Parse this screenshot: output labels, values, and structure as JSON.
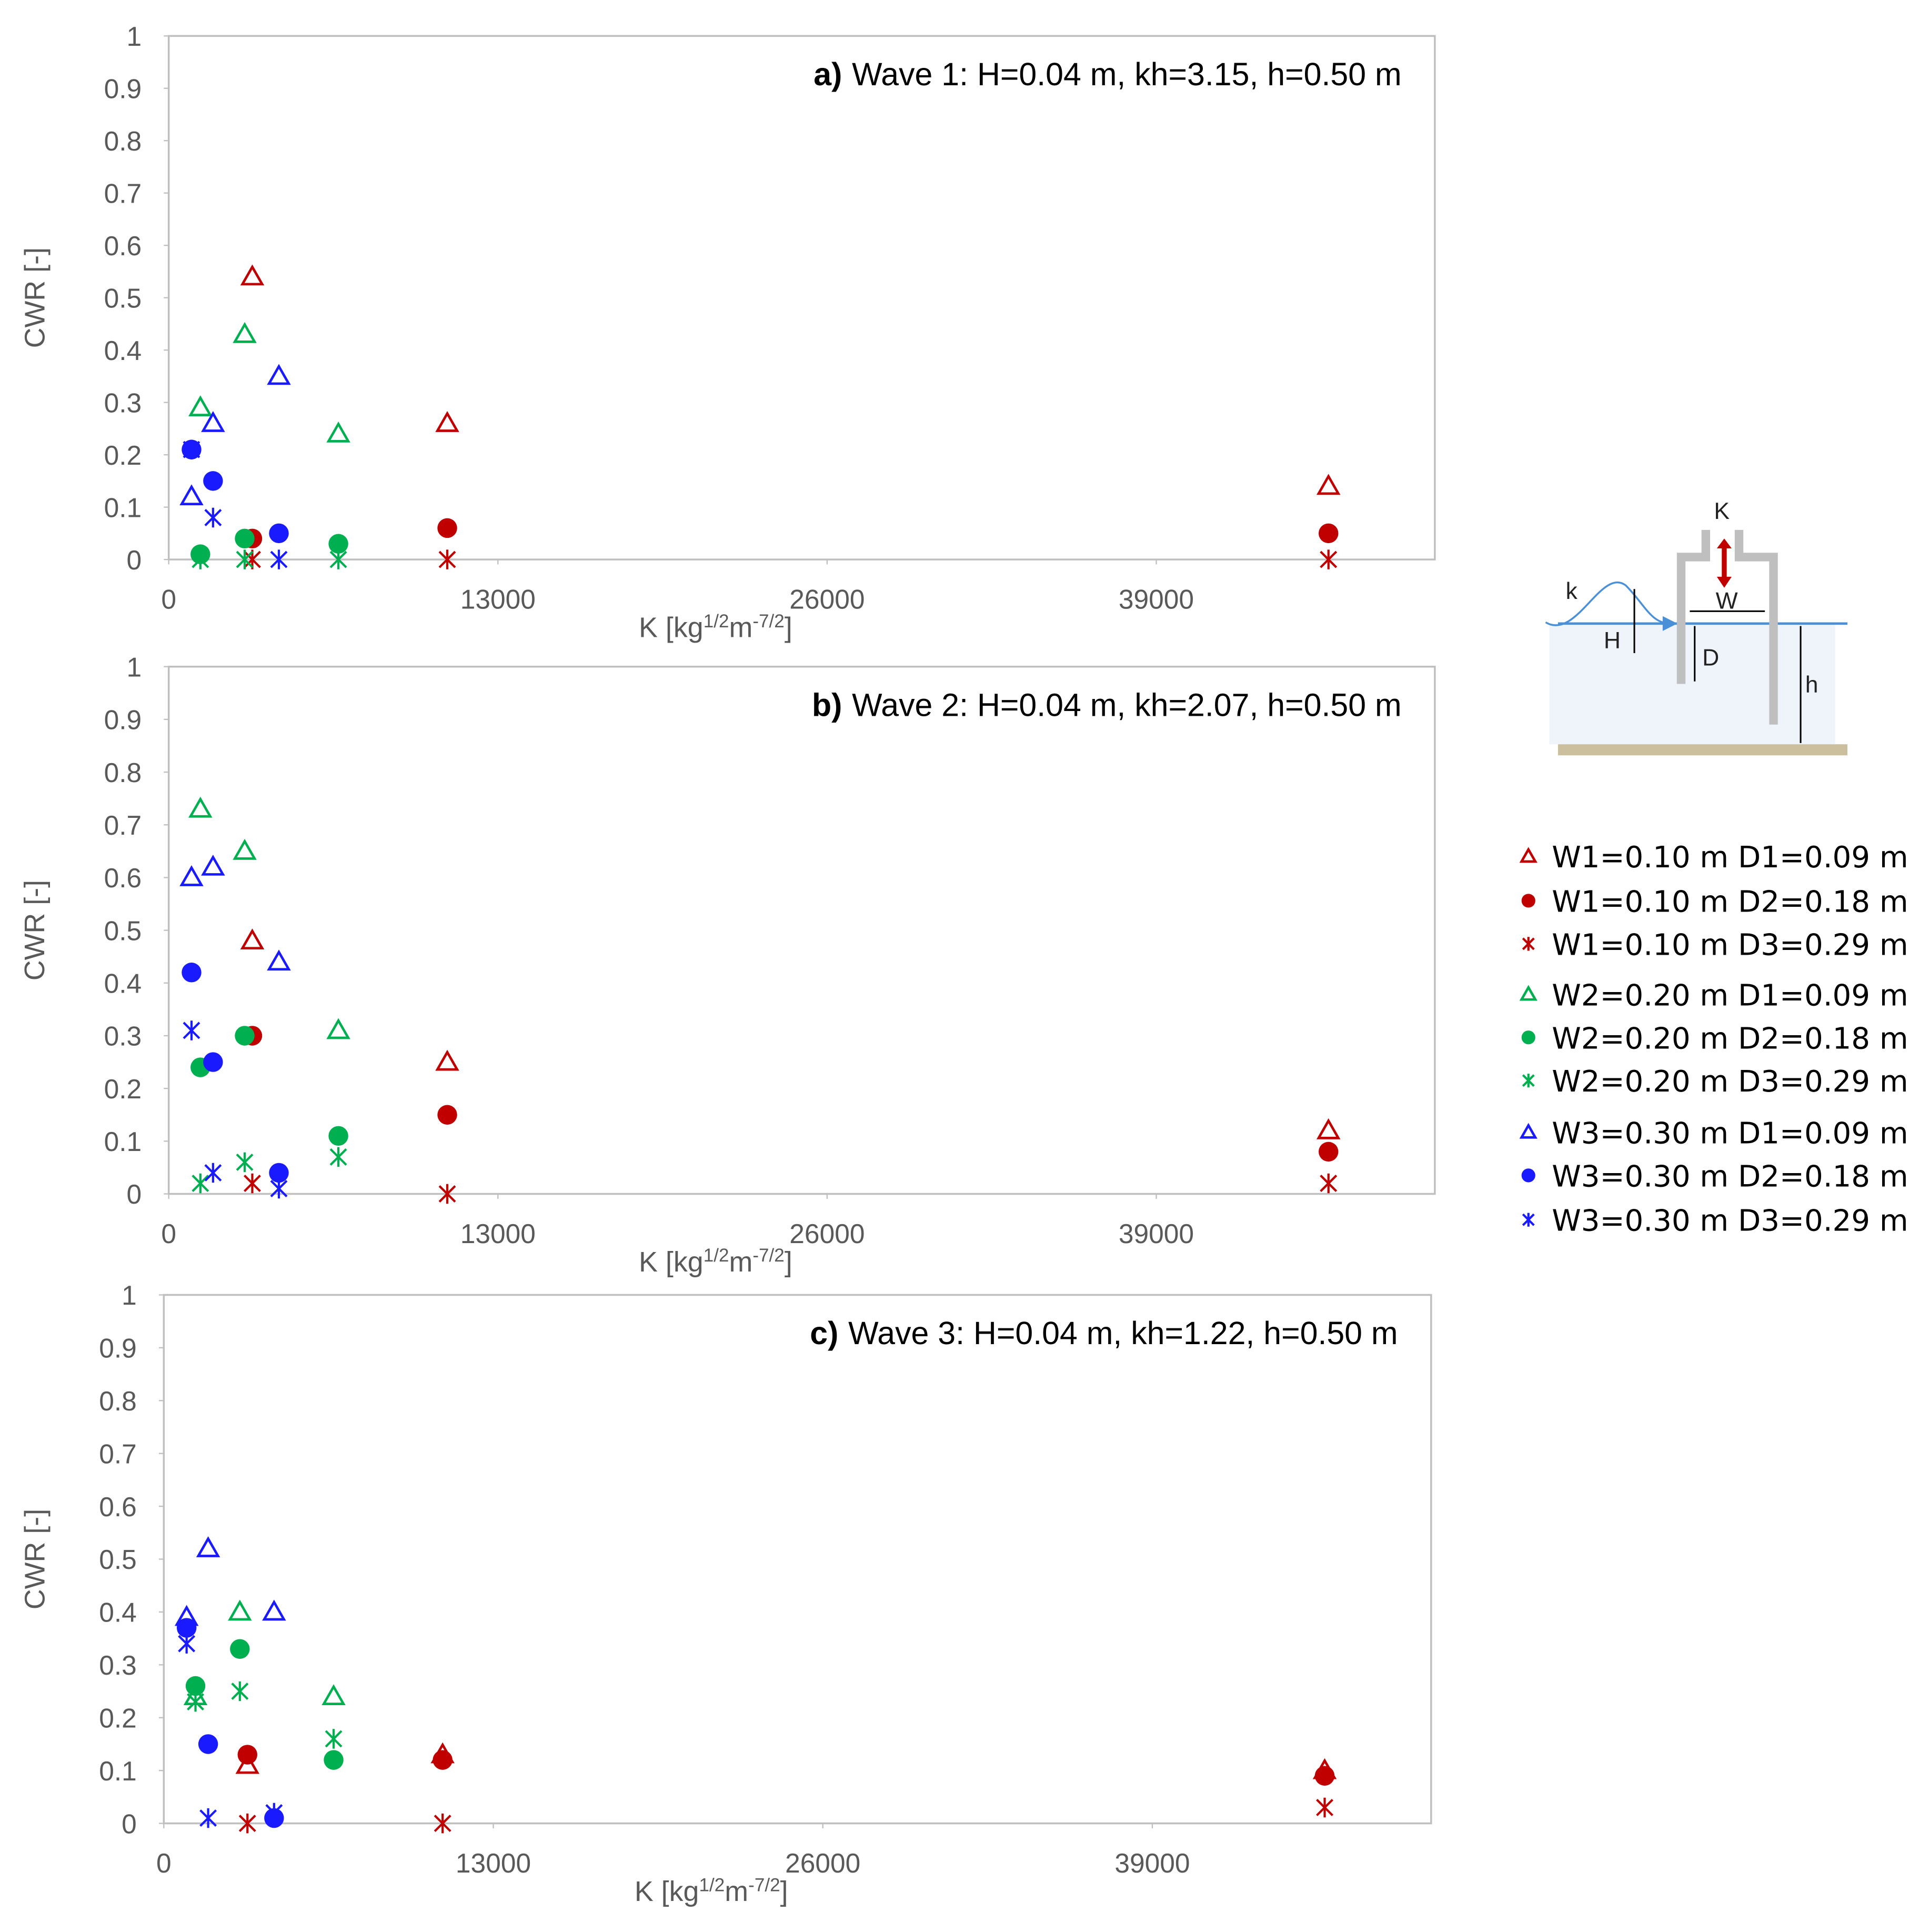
{
  "chart_data": [
    {
      "type": "scatter",
      "panel_label": "a)",
      "title": "Wave 1: H=0.04 m, kh=3.15, h=0.50 m",
      "xlabel": [
        "K [kg",
        "1/2",
        "m",
        "-7/2",
        "]"
      ],
      "ylabel": "CWR [-]",
      "xlim": [
        0,
        50000
      ],
      "ylim": [
        0,
        1
      ],
      "xticks": [
        0,
        13000,
        26000,
        39000
      ],
      "yticks": [
        0,
        0.1,
        0.2,
        0.3,
        0.4,
        0.5,
        0.6,
        0.7,
        0.8,
        0.9,
        1
      ],
      "series": [
        {
          "name": "W1=0.10 m D1=0.09 m",
          "color": "#c00000",
          "marker": "triangle",
          "x": [
            3300,
            11000,
            45800
          ],
          "values": [
            0.54,
            0.26,
            0.14
          ]
        },
        {
          "name": "W1=0.10 m D2=0.18 m",
          "color": "#c00000",
          "marker": "circle",
          "x": [
            3300,
            11000,
            45800
          ],
          "values": [
            0.04,
            0.06,
            0.05
          ]
        },
        {
          "name": "W1=0.10 m D3=0.29 m",
          "color": "#c00000",
          "marker": "star",
          "x": [
            3300,
            11000,
            45800
          ],
          "values": [
            0,
            0,
            0
          ]
        },
        {
          "name": "W2=0.20 m D1=0.09 m",
          "color": "#00b050",
          "marker": "triangle",
          "x": [
            1250,
            3000,
            6700
          ],
          "values": [
            0.29,
            0.43,
            0.24
          ]
        },
        {
          "name": "W2=0.20 m D2=0.18 m",
          "color": "#00b050",
          "marker": "circle",
          "x": [
            1250,
            3000,
            6700
          ],
          "values": [
            0.01,
            0.04,
            0.03
          ]
        },
        {
          "name": "W2=0.20 m D3=0.29 m",
          "color": "#00b050",
          "marker": "star",
          "x": [
            1250,
            3000,
            6700
          ],
          "values": [
            0,
            0,
            0
          ]
        },
        {
          "name": "W3=0.30 m D1=0.09 m",
          "color": "#1a1aff",
          "marker": "triangle",
          "x": [
            900,
            1750,
            4350
          ],
          "values": [
            0.12,
            0.26,
            0.35
          ]
        },
        {
          "name": "W3=0.30 m D2=0.18 m",
          "color": "#1a1aff",
          "marker": "circle",
          "x": [
            900,
            1750,
            4350
          ],
          "values": [
            0.21,
            0.15,
            0.05
          ]
        },
        {
          "name": "W3=0.30 m D3=0.29 m",
          "color": "#1a1aff",
          "marker": "star",
          "x": [
            900,
            1750,
            4350
          ],
          "values": [
            0.21,
            0.08,
            0
          ]
        }
      ]
    },
    {
      "type": "scatter",
      "panel_label": "b)",
      "title": "Wave 2: H=0.04 m, kh=2.07, h=0.50 m",
      "xlabel": [
        "K [kg",
        "1/2",
        "m",
        "-7/2",
        "]"
      ],
      "ylabel": "CWR [-]",
      "xlim": [
        0,
        50000
      ],
      "ylim": [
        0,
        1
      ],
      "xticks": [
        0,
        13000,
        26000,
        39000
      ],
      "yticks": [
        0,
        0.1,
        0.2,
        0.3,
        0.4,
        0.5,
        0.6,
        0.7,
        0.8,
        0.9,
        1
      ],
      "series": [
        {
          "color": "#c00000",
          "marker": "triangle",
          "x": [
            3300,
            11000,
            45800
          ],
          "values": [
            0.48,
            0.25,
            0.12
          ]
        },
        {
          "color": "#c00000",
          "marker": "circle",
          "x": [
            3300,
            11000,
            45800
          ],
          "values": [
            0.3,
            0.15,
            0.08
          ]
        },
        {
          "color": "#c00000",
          "marker": "star",
          "x": [
            3300,
            11000,
            45800
          ],
          "values": [
            0.02,
            0,
            0.02
          ]
        },
        {
          "color": "#00b050",
          "marker": "triangle",
          "x": [
            1250,
            3000,
            6700
          ],
          "values": [
            0.73,
            0.65,
            0.31
          ]
        },
        {
          "color": "#00b050",
          "marker": "circle",
          "x": [
            1250,
            3000,
            6700
          ],
          "values": [
            0.24,
            0.3,
            0.11
          ]
        },
        {
          "color": "#00b050",
          "marker": "star",
          "x": [
            1250,
            3000,
            6700
          ],
          "values": [
            0.02,
            0.06,
            0.07
          ]
        },
        {
          "color": "#1a1aff",
          "marker": "triangle",
          "x": [
            900,
            1750,
            4350
          ],
          "values": [
            0.6,
            0.62,
            0.44
          ]
        },
        {
          "color": "#1a1aff",
          "marker": "circle",
          "x": [
            900,
            1750,
            4350
          ],
          "values": [
            0.42,
            0.25,
            0.04
          ]
        },
        {
          "color": "#1a1aff",
          "marker": "star",
          "x": [
            900,
            1750,
            4350
          ],
          "values": [
            0.31,
            0.04,
            0.01
          ]
        }
      ]
    },
    {
      "type": "scatter",
      "panel_label": "c)",
      "title": "Wave 3: H=0.04 m, kh=1.22, h=0.50 m",
      "xlabel": [
        "K [kg",
        "1/2",
        "m",
        "-7/2",
        "]"
      ],
      "ylabel": "CWR [-]",
      "xlim": [
        0,
        50000
      ],
      "ylim": [
        0,
        1
      ],
      "xticks": [
        0,
        13000,
        26000,
        39000
      ],
      "yticks": [
        0,
        0.1,
        0.2,
        0.3,
        0.4,
        0.5,
        0.6,
        0.7,
        0.8,
        0.9,
        1
      ],
      "series": [
        {
          "color": "#c00000",
          "marker": "triangle",
          "x": [
            3300,
            11000,
            45800
          ],
          "values": [
            0.11,
            0.13,
            0.1
          ]
        },
        {
          "color": "#c00000",
          "marker": "circle",
          "x": [
            3300,
            11000,
            45800
          ],
          "values": [
            0.13,
            0.12,
            0.09
          ]
        },
        {
          "color": "#c00000",
          "marker": "star",
          "x": [
            3300,
            11000,
            45800
          ],
          "values": [
            0,
            0,
            0.03
          ]
        },
        {
          "color": "#00b050",
          "marker": "triangle",
          "x": [
            1250,
            3000,
            6700
          ],
          "values": [
            0.24,
            0.4,
            0.24
          ]
        },
        {
          "color": "#00b050",
          "marker": "circle",
          "x": [
            1250,
            3000,
            6700
          ],
          "values": [
            0.26,
            0.33,
            0.12
          ]
        },
        {
          "color": "#00b050",
          "marker": "star",
          "x": [
            1250,
            3000,
            6700
          ],
          "values": [
            0.23,
            0.25,
            0.16
          ]
        },
        {
          "color": "#1a1aff",
          "marker": "triangle",
          "x": [
            900,
            1750,
            4350
          ],
          "values": [
            0.39,
            0.52,
            0.4
          ]
        },
        {
          "color": "#1a1aff",
          "marker": "circle",
          "x": [
            900,
            1750,
            4350
          ],
          "values": [
            0.37,
            0.15,
            0.01
          ]
        },
        {
          "color": "#1a1aff",
          "marker": "star",
          "x": [
            900,
            1750,
            4350
          ],
          "values": [
            0.34,
            0.01,
            0.02
          ]
        }
      ]
    }
  ],
  "diagram": {
    "labels": [
      "K",
      "k",
      "W",
      "H",
      "D",
      "h"
    ]
  }
}
